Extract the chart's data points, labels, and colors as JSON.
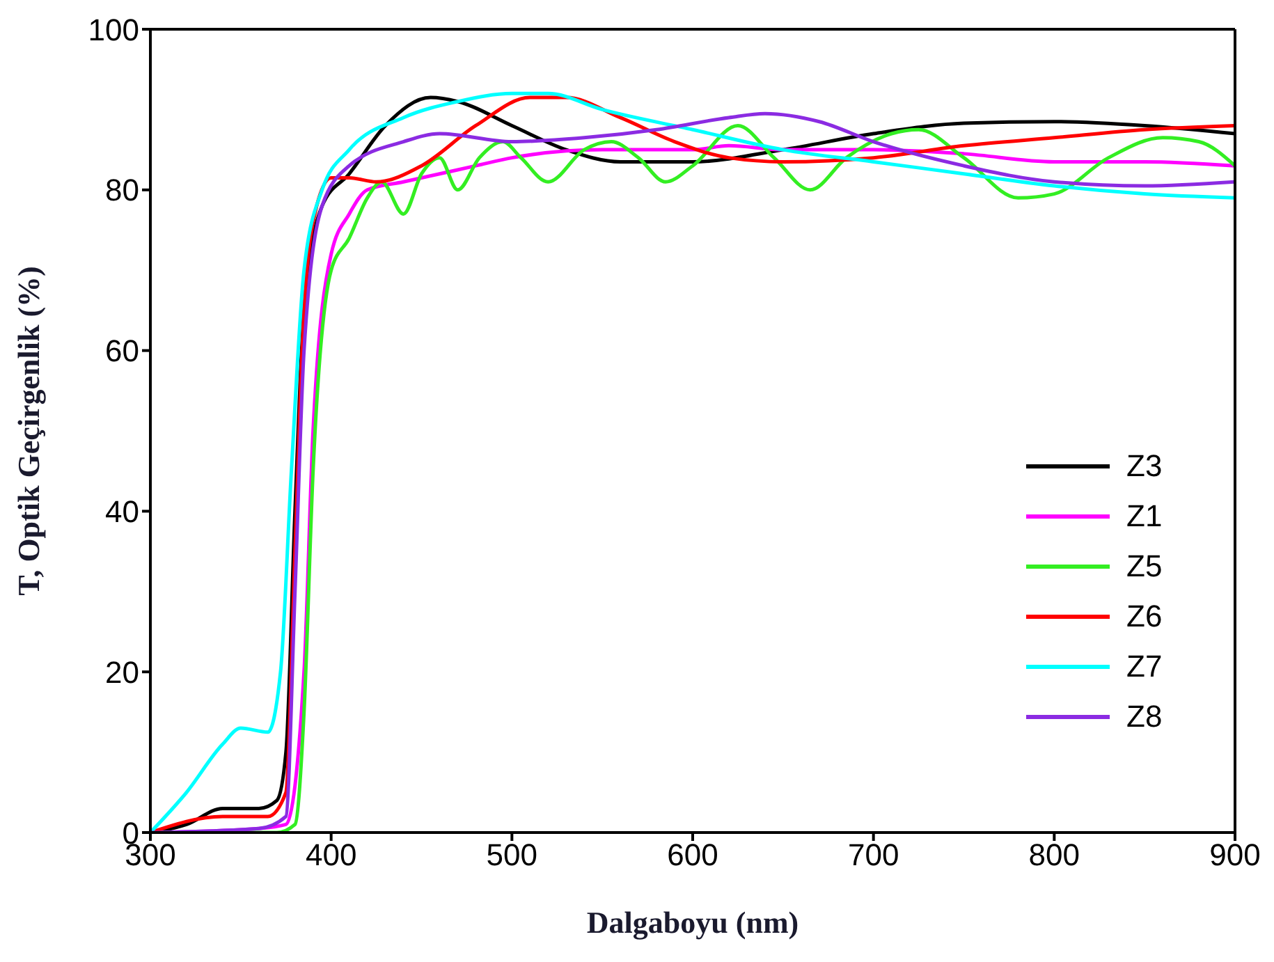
{
  "chart_data": {
    "type": "line",
    "xlabel": "Dalgaboyu (nm)",
    "ylabel": "T, Optik Geçirgenlik (%)",
    "xlim": [
      300,
      900
    ],
    "xticks": [
      300,
      400,
      500,
      600,
      700,
      800,
      900
    ],
    "ylim": [
      0,
      100
    ],
    "yticks": [
      0,
      20,
      40,
      60,
      80,
      100
    ],
    "legend": "right",
    "marker": "none",
    "line_style": "solid",
    "series": [
      {
        "name": "Z3",
        "color": "#000000",
        "x": [
          300,
          320,
          340,
          360,
          370,
          375,
          380,
          385,
          395,
          410,
          430,
          455,
          470,
          500,
          530,
          560,
          600,
          650,
          700,
          750,
          800,
          850,
          900
        ],
        "values": [
          0,
          1,
          3,
          3,
          4,
          10,
          40,
          65,
          78,
          82,
          88,
          91.5,
          91,
          88,
          85,
          83.5,
          83.5,
          85,
          87,
          88.3,
          88.5,
          88,
          87
        ]
      },
      {
        "name": "Z1",
        "color": "#ff00ff",
        "x": [
          300,
          360,
          375,
          385,
          390,
          400,
          410,
          420,
          440,
          460,
          480,
          500,
          550,
          600,
          620,
          650,
          700,
          750,
          800,
          850,
          900
        ],
        "values": [
          0,
          0.5,
          1,
          20,
          50,
          72,
          77,
          80,
          81,
          82,
          83,
          84,
          85,
          85,
          85.5,
          85,
          85,
          84.5,
          83.5,
          83.5,
          83
        ]
      },
      {
        "name": "Z5",
        "color": "#33ee22",
        "x": [
          300,
          370,
          380,
          385,
          390,
          400,
          410,
          420,
          428,
          440,
          450,
          460,
          470,
          482,
          495,
          505,
          520,
          540,
          555,
          570,
          585,
          600,
          625,
          645,
          665,
          685,
          710,
          725,
          750,
          780,
          800,
          830,
          860,
          880,
          900
        ],
        "values": [
          0,
          0,
          1,
          15,
          45,
          70,
          74,
          79,
          81,
          77,
          82,
          84,
          80,
          84,
          86,
          84,
          81,
          85,
          86,
          84,
          81,
          83,
          88,
          84,
          80,
          84,
          87,
          87.5,
          84,
          79,
          79.5,
          84,
          86.5,
          86,
          83
        ]
      },
      {
        "name": "Z6",
        "color": "#ff0000",
        "x": [
          300,
          340,
          365,
          375,
          380,
          385,
          392,
          400,
          410,
          425,
          450,
          480,
          510,
          530,
          560,
          590,
          620,
          650,
          700,
          750,
          800,
          850,
          900
        ],
        "values": [
          0,
          2,
          2,
          5,
          35,
          65,
          78,
          81.5,
          81.5,
          81,
          83,
          88,
          91.5,
          91.5,
          89,
          86,
          84,
          83.5,
          84,
          85.5,
          86.5,
          87.5,
          88
        ]
      },
      {
        "name": "Z7",
        "color": "#00ffff",
        "x": [
          300,
          320,
          340,
          350,
          365,
          372,
          378,
          385,
          395,
          410,
          440,
          470,
          500,
          520,
          550,
          600,
          650,
          700,
          750,
          800,
          850,
          900
        ],
        "values": [
          0,
          5,
          11,
          13,
          12.5,
          20,
          45,
          70,
          80,
          85,
          89,
          91,
          92,
          92,
          90,
          87.5,
          85,
          83.5,
          82,
          80.5,
          79.5,
          79
        ]
      },
      {
        "name": "Z8",
        "color": "#8b2be2",
        "x": [
          300,
          360,
          375,
          380,
          385,
          395,
          410,
          440,
          460,
          500,
          540,
          580,
          620,
          640,
          670,
          700,
          750,
          800,
          850,
          900
        ],
        "values": [
          0,
          0.5,
          2,
          30,
          60,
          78,
          83,
          86,
          87,
          86,
          86.5,
          87.5,
          89,
          89.5,
          88.5,
          86,
          83,
          81,
          80.5,
          81
        ]
      }
    ]
  }
}
